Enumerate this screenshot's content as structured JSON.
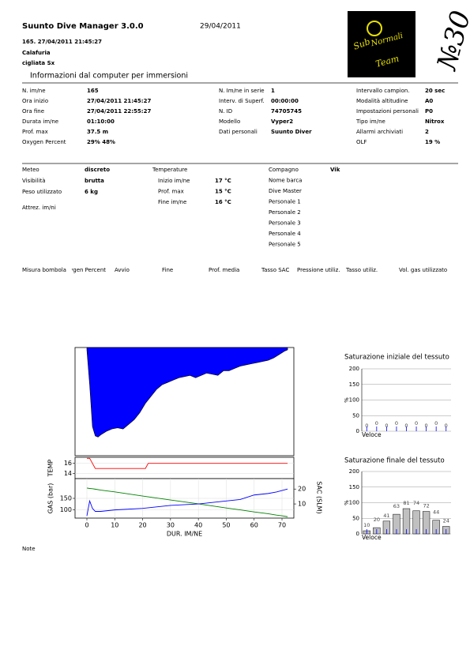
{
  "header": {
    "title": "Suunto Dive Manager 3.0.0",
    "date": "29/04/2011",
    "dive": "165. 27/04/2011 21:45:27",
    "site": "Calafuria",
    "spot": "cigliata Sx",
    "section": "Informazioni dal computer per immersioni"
  },
  "logo": {
    "line1": "Sub",
    "line2": "Normali",
    "line3": "Team",
    "number": "№30"
  },
  "info": {
    "columns": [
      [
        {
          "label": "N. im/ne",
          "value": "165"
        },
        {
          "label": "Ora inizio",
          "value": "27/04/2011 21:45:27"
        },
        {
          "label": "Ora fine",
          "value": "27/04/2011 22:55:27"
        },
        {
          "label": "Durata im/ne",
          "value": "01:10:00"
        },
        {
          "label": "Prof. max",
          "value": "37.5 m"
        },
        {
          "label": "Oxygen Percent",
          "value": "29%  48%"
        }
      ],
      [
        {
          "label": "N. Im/ne in serie",
          "value": "1"
        },
        {
          "label": "Interv. di Superf.",
          "value": "00:00:00"
        },
        {
          "label": "N. ID",
          "value": "74705745"
        },
        {
          "label": "Modello",
          "value": "Vyper2"
        },
        {
          "label": "Dati personali",
          "value": "Suunto Diver"
        }
      ],
      [
        {
          "label": "Intervallo campion.",
          "value": "20 sec"
        },
        {
          "label": "Modalità altitudine",
          "value": "A0"
        },
        {
          "label": "Impostazioni personali",
          "value": "P0"
        },
        {
          "label": "Tipo im/ne",
          "value": "Nitrox"
        },
        {
          "label": "Allarmi archiviati",
          "value": "2"
        },
        {
          "label": "OLF",
          "value": "19 %"
        }
      ]
    ]
  },
  "conditions": {
    "weather": [
      {
        "label": "Meteo",
        "value": "discreto"
      },
      {
        "label": "Visibilità",
        "value": "brutta"
      },
      {
        "label": "Peso utilizzato",
        "value": "6 kg"
      },
      {
        "label": "Attrez. im/ni"
      }
    ],
    "temperature": {
      "title": "Temperature",
      "rows": [
        {
          "label": "Inizio im/ne",
          "value": "17 °C"
        },
        {
          "label": "Prof. max",
          "value": "15 °C"
        },
        {
          "label": "Fine im/ne",
          "value": "16 °C"
        }
      ]
    },
    "people": [
      {
        "label": "Compagno",
        "value": "Vik"
      },
      {
        "label": "Nome barca"
      },
      {
        "label": "Dive Master"
      },
      {
        "label": "Personale 1"
      },
      {
        "label": "Personale 2"
      },
      {
        "label": "Personale 3"
      },
      {
        "label": "Personale 4"
      },
      {
        "label": "Personale 5"
      }
    ]
  },
  "gas_table": {
    "headers": [
      "Misura bombola",
      "Oxygen Percent",
      "Avvio",
      "Fine",
      "Prof. media",
      "Tasso SAC",
      "Pressione utiliz.",
      "Tasso utiliz.",
      "Vol. gas utilizzato"
    ]
  },
  "footer": {
    "note": "Note"
  },
  "chart_data": [
    {
      "type": "area",
      "x": [
        0,
        1,
        2,
        3,
        4,
        5,
        7,
        9,
        11,
        13,
        15,
        17,
        19,
        21,
        23,
        25,
        27,
        29,
        31,
        33,
        35,
        37,
        39,
        41,
        43,
        45,
        47,
        49,
        51,
        53,
        55,
        57,
        59,
        61,
        63,
        65,
        67,
        69,
        71,
        72
      ],
      "series": [
        {
          "color": "#0000ff",
          "values": [
            0,
            15,
            33,
            37,
            37.5,
            36.5,
            35,
            34,
            33.5,
            34,
            32,
            30,
            27,
            23,
            20,
            17,
            15,
            14,
            13,
            12,
            11.5,
            11,
            12,
            11,
            10,
            10.5,
            11,
            9,
            9,
            8,
            7,
            6.5,
            6,
            5.5,
            5,
            4.5,
            3.5,
            2,
            0.5,
            0
          ]
        }
      ],
      "xlim": [
        -4.25,
        74.25
      ],
      "ylim": [
        -1,
        45.5
      ],
      "y_inverted": true
    },
    {
      "type": "line",
      "x": [
        0,
        1,
        2,
        3,
        21,
        22,
        72
      ],
      "series": [
        {
          "color": "#ff0000",
          "values": [
            17,
            17,
            16,
            15,
            15,
            16,
            16
          ]
        }
      ],
      "xlim": [
        -4.25,
        74.25
      ],
      "ylim": [
        13,
        17.2
      ],
      "yticks": [
        14,
        16
      ],
      "ylabel": "TEMP",
      "grid": true
    },
    {
      "type": "line",
      "x": [
        0,
        1,
        2,
        3,
        5,
        10,
        20,
        30,
        40,
        45,
        50,
        55,
        60,
        65,
        68,
        70,
        72
      ],
      "series": [
        {
          "color": "#008000",
          "values": [
            195,
            193,
            192,
            190,
            186,
            178,
            160,
            143,
            126,
            117,
            108,
            100,
            91,
            83,
            77,
            74,
            70
          ]
        },
        {
          "color": "#0000ff",
          "axis": "y2",
          "values": [
            2,
            12,
            7,
            5,
            5,
            6,
            7,
            9,
            10,
            11,
            12,
            13,
            16,
            17,
            18,
            19,
            20
          ]
        }
      ],
      "xlim": [
        -4.25,
        74.25
      ],
      "xticks": [
        0,
        10,
        20,
        30,
        40,
        50,
        60,
        70
      ],
      "xlabel": "DUR. IM/NE",
      "ylim": [
        64,
        236
      ],
      "yticks": [
        100,
        150
      ],
      "ylabel": "GAS (bar)",
      "y2lim": [
        0.5,
        27
      ],
      "y2ticks": [
        10,
        20
      ],
      "y2label": "SAC (SLM)",
      "grid": true
    },
    {
      "type": "bar",
      "title": "Saturazione iniziale del tessuto",
      "categories": [
        null,
        null,
        null,
        null,
        null,
        null,
        null,
        null,
        null
      ],
      "values": [
        0,
        0,
        0,
        0,
        0,
        0,
        0,
        0,
        0
      ],
      "color": "#c0c0c0",
      "xlabel": "Veloce",
      "ylabel": "%",
      "ylim": [
        0,
        200
      ],
      "yticks": [
        0,
        50,
        100,
        150,
        200
      ],
      "grid": true
    },
    {
      "type": "bar",
      "title": "Saturazione finale del tessuto",
      "categories": [
        null,
        null,
        null,
        null,
        null,
        null,
        null,
        null,
        null
      ],
      "values": [
        10,
        20,
        41,
        63,
        81,
        74,
        72,
        44,
        24
      ],
      "color": "#c0c0c0",
      "xlabel": "Veloce",
      "ylabel": "%",
      "ylim": [
        0,
        200
      ],
      "yticks": [
        0,
        50,
        100,
        150,
        200
      ],
      "grid": true
    }
  ]
}
